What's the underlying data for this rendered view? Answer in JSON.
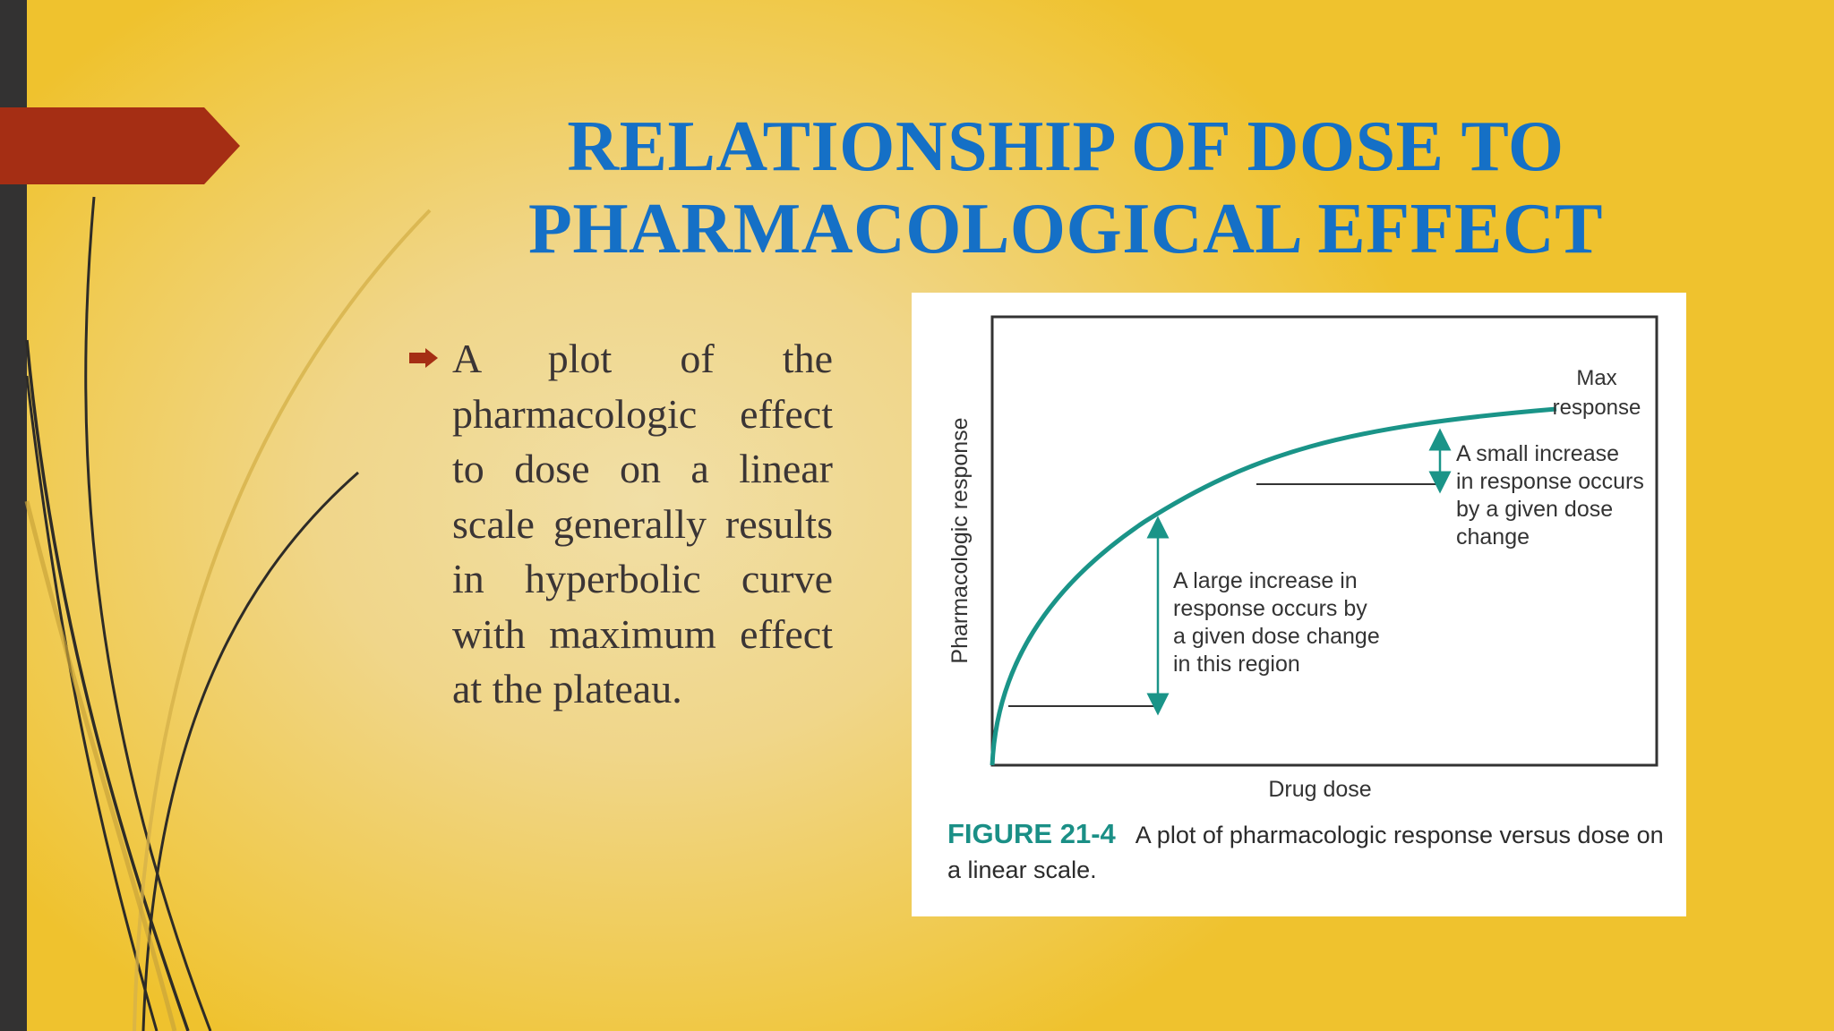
{
  "slide": {
    "title": "RELATIONSHIP OF DOSE TO PHARMACOLOGICAL EFFECT",
    "bullet_text": "A plot of the pharmacologic effect to dose on a linear scale generally results in hyperbolic curve with maximum effect at the plateau.",
    "colors": {
      "title": "#1570c6",
      "accent": "#a52e14",
      "background": "#f0c845",
      "side_bar": "#333232",
      "curve": "#1a9488"
    },
    "icons": {
      "bullet": "arrow-right-icon"
    }
  },
  "figure": {
    "number": "FIGURE 21-4",
    "caption": "A plot of pharmacologic response versus dose on a linear scale.",
    "xlabel": "Drug dose",
    "ylabel": "Pharmacologic response",
    "max_label_line1": "Max",
    "max_label_line2": "response",
    "small_note": [
      "A small increase",
      "in response occurs",
      "by a given dose",
      "change"
    ],
    "large_note": [
      "A large increase in",
      "response occurs by",
      "a given dose change",
      "in this region"
    ]
  }
}
